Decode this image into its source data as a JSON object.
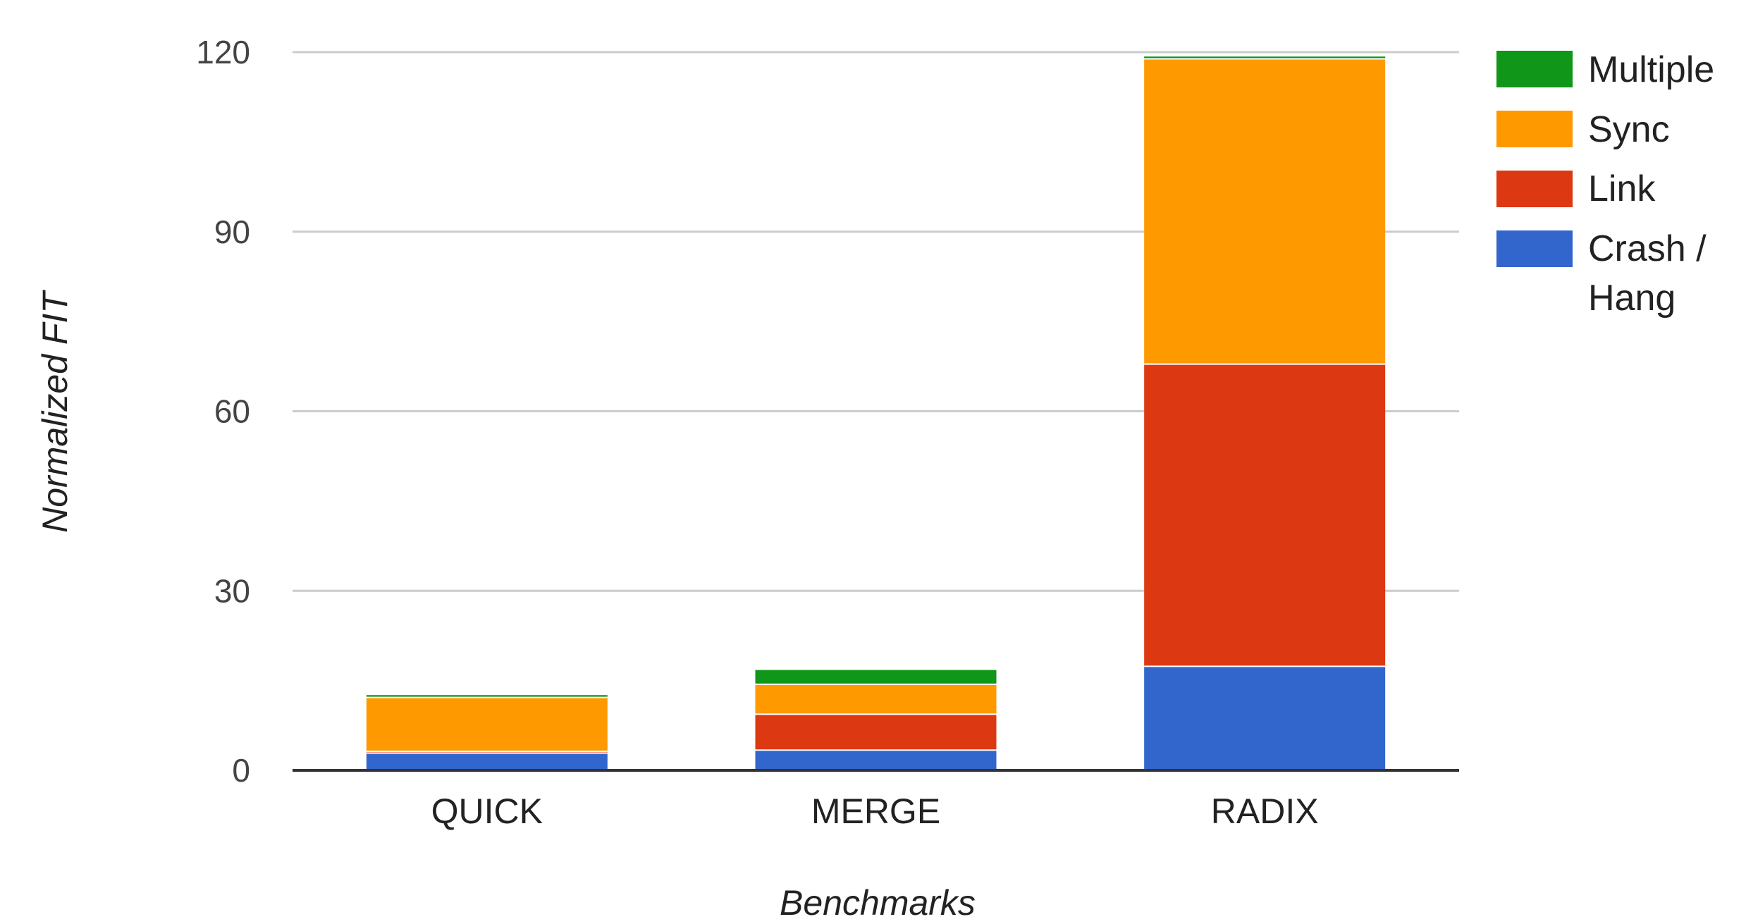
{
  "chart_data": {
    "type": "bar",
    "stacked": true,
    "categories": [
      "QUICK",
      "MERGE",
      "RADIX"
    ],
    "series": [
      {
        "name": "Crash / Hang",
        "color": "#3366cc",
        "values": [
          3,
          3.5,
          17.5
        ]
      },
      {
        "name": "Link",
        "color": "#dc3912",
        "values": [
          0.3,
          6,
          50.5
        ]
      },
      {
        "name": "Sync",
        "color": "#ff9900",
        "values": [
          9,
          5,
          51
        ]
      },
      {
        "name": "Multiple",
        "color": "#109618",
        "values": [
          0.5,
          2.5,
          0.5
        ]
      }
    ],
    "legend_order": [
      "Multiple",
      "Sync",
      "Link",
      "Crash /",
      "Hang"
    ],
    "xlabel": "Benchmarks",
    "ylabel": "Normalized FIT",
    "ylim": [
      0,
      120
    ],
    "yticks": [
      "0",
      "30",
      "60",
      "90",
      "120"
    ],
    "grid": true,
    "legend_position": "right"
  }
}
